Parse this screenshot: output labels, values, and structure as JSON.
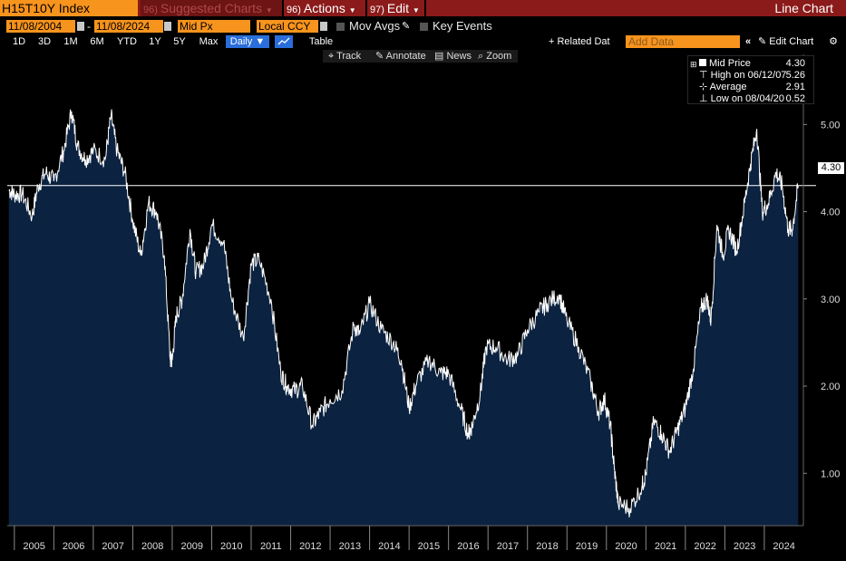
{
  "header": {
    "ticker": "H15T10Y Index",
    "suggested": "Suggested Charts",
    "suggested_num": "96)",
    "actions": "Actions",
    "actions_num": "96)",
    "edit": "Edit",
    "edit_num": "97)",
    "view": "Line Chart"
  },
  "controls": {
    "start_date": "11/08/2004",
    "end_date": "11/08/2024",
    "field": "Mid Px",
    "currency": "Local CCY",
    "mov_avgs": "Mov Avgs",
    "key_events": "Key Events",
    "periods": [
      "1D",
      "3D",
      "1M",
      "6M",
      "YTD",
      "1Y",
      "5Y",
      "Max"
    ],
    "frequency": "Daily",
    "table": "Table",
    "related_data": "+ Related Dat",
    "add_data_placeholder": "Add Data",
    "edit_chart": "Edit Chart"
  },
  "tools": {
    "track": "Track",
    "annotate": "Annotate",
    "news": "News",
    "zoom": "Zoom"
  },
  "legend": {
    "mid_price_label": "Mid Price",
    "mid_price_value": "4.30",
    "high_label": "High on 06/12/07",
    "high_value": "5.26",
    "average_label": "Average",
    "average_value": "2.91",
    "low_label": "Low on 08/04/20",
    "low_value": "0.52"
  },
  "colors": {
    "accent_orange": "#f7941d",
    "header_red": "#8b1a1a",
    "area_fill": "#0b2240",
    "line": "#ffffff",
    "selected_blue": "#2a6edb"
  },
  "chart_data": {
    "type": "area",
    "x": [
      2004.86,
      2005.0,
      2005.2,
      2005.45,
      2005.6,
      2005.8,
      2006.0,
      2006.25,
      2006.45,
      2006.6,
      2006.8,
      2007.0,
      2007.3,
      2007.45,
      2007.6,
      2007.8,
      2008.0,
      2008.2,
      2008.4,
      2008.6,
      2008.8,
      2008.95,
      2009.0,
      2009.1,
      2009.25,
      2009.45,
      2009.6,
      2009.8,
      2010.0,
      2010.3,
      2010.5,
      2010.8,
      2011.0,
      2011.2,
      2011.5,
      2011.75,
      2011.9,
      2012.1,
      2012.3,
      2012.55,
      2012.75,
      2013.0,
      2013.3,
      2013.6,
      2013.75,
      2014.0,
      2014.3,
      2014.6,
      2014.8,
      2015.0,
      2015.2,
      2015.5,
      2015.8,
      2016.0,
      2016.3,
      2016.5,
      2016.6,
      2016.8,
      2016.95,
      2017.2,
      2017.5,
      2017.75,
      2018.0,
      2018.3,
      2018.5,
      2018.8,
      2019.0,
      2019.3,
      2019.6,
      2019.8,
      2019.95,
      2020.1,
      2020.2,
      2020.3,
      2020.6,
      2020.9,
      2021.0,
      2021.2,
      2021.4,
      2021.6,
      2021.8,
      2022.0,
      2022.2,
      2022.4,
      2022.55,
      2022.65,
      2022.8,
      2022.95,
      2023.1,
      2023.3,
      2023.5,
      2023.65,
      2023.81,
      2023.95,
      2024.1,
      2024.3,
      2024.45,
      2024.6,
      2024.71,
      2024.86
    ],
    "values": [
      4.25,
      4.2,
      4.2,
      3.95,
      4.3,
      4.45,
      4.35,
      4.7,
      5.15,
      4.75,
      4.6,
      4.7,
      4.6,
      5.1,
      4.7,
      4.45,
      3.9,
      3.5,
      4.1,
      4.0,
      3.5,
      2.3,
      2.3,
      2.8,
      3.0,
      3.8,
      3.3,
      3.4,
      3.85,
      3.65,
      3.0,
      2.55,
      3.4,
      3.45,
      3.0,
      2.15,
      2.0,
      1.95,
      2.0,
      1.55,
      1.7,
      1.85,
      1.95,
      2.7,
      2.6,
      2.95,
      2.65,
      2.5,
      2.3,
      1.75,
      2.05,
      2.3,
      2.15,
      2.15,
      1.75,
      1.45,
      1.55,
      1.9,
      2.45,
      2.45,
      2.3,
      2.35,
      2.65,
      2.85,
      2.95,
      3.05,
      2.75,
      2.45,
      2.05,
      1.7,
      1.85,
      1.55,
      1.05,
      0.65,
      0.6,
      0.85,
      1.0,
      1.6,
      1.45,
      1.25,
      1.5,
      1.75,
      2.2,
      2.9,
      3.0,
      2.75,
      3.85,
      3.5,
      3.8,
      3.55,
      4.1,
      4.55,
      4.95,
      4.0,
      4.1,
      4.45,
      4.3,
      3.8,
      3.8,
      4.3
    ],
    "xticks": [
      2005,
      2006,
      2007,
      2008,
      2009,
      2010,
      2011,
      2012,
      2013,
      2014,
      2015,
      2016,
      2017,
      2018,
      2019,
      2020,
      2021,
      2022,
      2023,
      2024
    ],
    "yticks": [
      "1.00",
      "2.00",
      "3.00",
      "4.00",
      "5.00"
    ],
    "ylim": [
      0.4,
      5.7
    ],
    "last_value_label": "4.30",
    "last_value": 4.3
  }
}
